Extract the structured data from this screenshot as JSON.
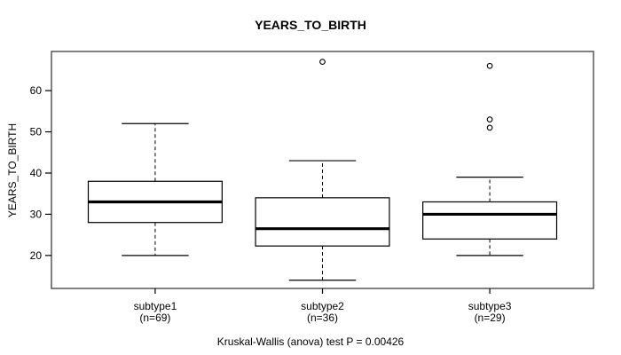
{
  "chart_data": {
    "type": "boxplot",
    "title": "YEARS_TO_BIRTH",
    "ylabel": "YEARS_TO_BIRTH",
    "xlabel": "",
    "caption": "Kruskal-Wallis (anova) test P = 0.00426",
    "yticks": [
      20,
      30,
      40,
      50,
      60
    ],
    "ylim": [
      12,
      69.5
    ],
    "grid": false,
    "legend": "none",
    "groups": [
      {
        "label": "subtype1",
        "sublabel": "(n=69)",
        "n": 69,
        "whisker_low": 20,
        "q1": 28,
        "median": 33,
        "q3": 38,
        "whisker_high": 52,
        "outliers": []
      },
      {
        "label": "subtype2",
        "sublabel": "(n=36)",
        "n": 36,
        "whisker_low": 14,
        "q1": 22.3,
        "median": 26.5,
        "q3": 34,
        "whisker_high": 43,
        "outliers": [
          67
        ]
      },
      {
        "label": "subtype3",
        "sublabel": "(n=29)",
        "n": 29,
        "whisker_low": 20,
        "q1": 24,
        "median": 30,
        "q3": 33,
        "whisker_high": 39,
        "outliers": [
          51,
          53,
          66
        ]
      }
    ],
    "colors": {
      "line": "#000000",
      "frame": "#3c3c3c",
      "box_fill": "#ffffff",
      "background": "#ffffff",
      "text": "#000000"
    }
  }
}
